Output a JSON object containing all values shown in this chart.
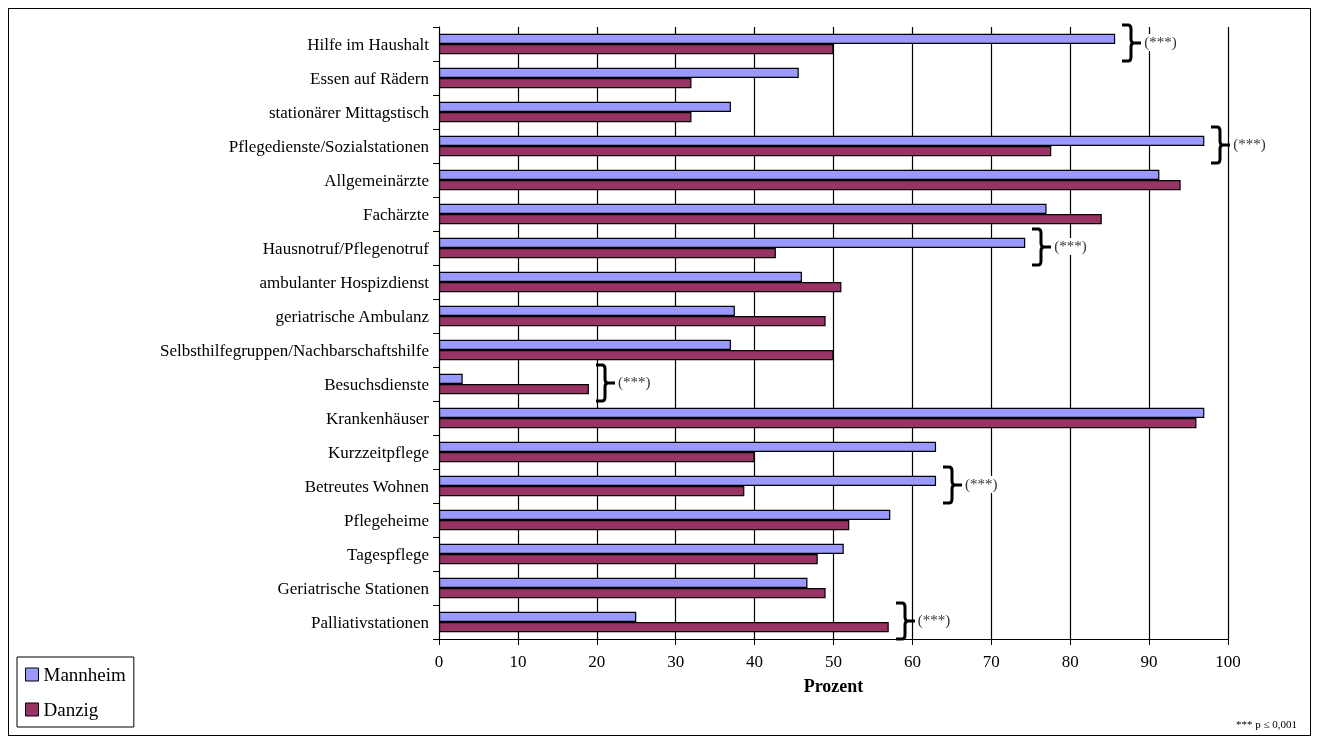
{
  "chart_data": {
    "type": "bar",
    "orientation": "horizontal",
    "xlabel": "Prozent",
    "categories": [
      "Hilfe im Haushalt",
      "Essen auf Rädern",
      "stationärer Mittagstisch",
      "Pflegedienste/Sozialstationen",
      "Allgemeinärzte",
      "Fachärzte",
      "Hausnotruf/Pflegenotruf",
      "ambulanter Hospizdienst",
      "geriatrische Ambulanz",
      "Selbsthilfegruppen/Nachbarschaftshilfe",
      "Besuchsdienste",
      "Krankenhäuser",
      "Kurzzeitpflege",
      "Betreutes Wohnen",
      "Pflegeheime",
      "Tagespflege",
      "Geriatrische Stationen",
      "Palliativstationen"
    ],
    "series": [
      {
        "name": "Mannheim",
        "color": "#9999ff",
        "values": [
          85.7,
          45.6,
          37,
          97,
          91.3,
          77,
          74.3,
          46,
          37.5,
          37,
          3,
          97,
          63,
          63,
          57.2,
          51.3,
          46.7,
          25
        ]
      },
      {
        "name": "Danzig",
        "color": "#993366",
        "values": [
          50,
          32,
          32,
          77.6,
          94,
          84,
          42.7,
          51,
          49,
          50,
          19,
          96,
          40,
          38.7,
          52,
          48,
          49,
          57
        ]
      }
    ],
    "xlim": [
      0,
      100
    ],
    "xticks": [
      0,
      10,
      20,
      30,
      40,
      50,
      60,
      70,
      80,
      90,
      100
    ],
    "grid": "x",
    "legend": "bottom left",
    "annotations": [
      {
        "text": "(***)",
        "x": 85.7,
        "y": "Hilfe im Haushalt"
      },
      {
        "text": "(***)",
        "x": 97,
        "y": "Pflegedienste/Sozialstationen"
      },
      {
        "text": "(***)",
        "x": 74.3,
        "y": "Hausnotruf/Pflegenotruf"
      },
      {
        "text": "(***)",
        "x": 19,
        "y": "Besuchsdienste"
      },
      {
        "text": "(***)",
        "x": 63,
        "y": "Betreutes Wohnen"
      },
      {
        "text": "(***)",
        "x": 57,
        "y": "Palliativstationen"
      },
      "*** p ≤ 0,001"
    ]
  }
}
